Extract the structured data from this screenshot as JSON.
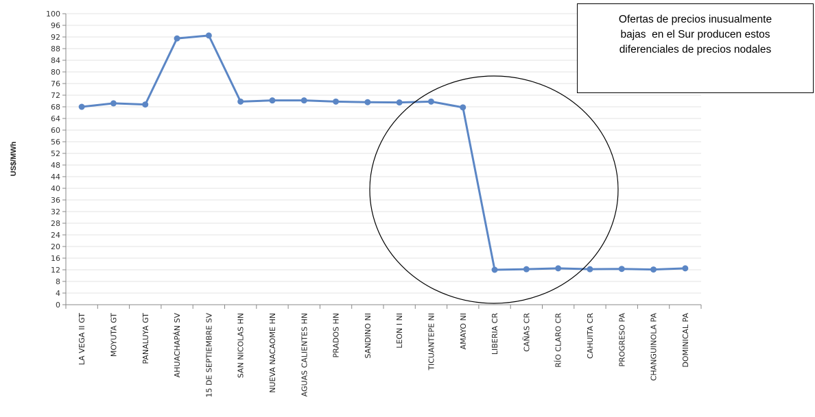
{
  "chart_data": {
    "type": "line",
    "title": "",
    "xlabel": "",
    "ylabel": "US$/MWh",
    "ylim": [
      0,
      100
    ],
    "ytick_step": 4,
    "grid": true,
    "legend": "none",
    "categories": [
      "LA VEGA II GT",
      "MOYUTA GT",
      "PANALUYA GT",
      "AHUACHAPÁN SV",
      "15 DE SEPTIEMBRE SV",
      "SAN NICOLAS HN",
      "NUEVA NACAOME HN",
      "AGUAS CALIENTES HN",
      "PRADOS HN",
      "SANDINO NI",
      "LEON I NI",
      "TICUANTEPE NI",
      "AMAYO NI",
      "LIBERIA CR",
      "CAÑAS CR",
      "RÍO CLARO CR",
      "CAHUITA CR",
      "PROGRESO PA",
      "CHANGUINOLA PA",
      "DOMINICAL PA"
    ],
    "series": [
      {
        "values": [
          68.0,
          69.2,
          68.8,
          91.5,
          92.5,
          69.8,
          70.2,
          70.2,
          69.8,
          69.6,
          69.5,
          69.8,
          67.8,
          12.0,
          12.2,
          12.5,
          12.2,
          12.3,
          12.1,
          12.5
        ],
        "color": "#5b86c5"
      }
    ],
    "annotations": [
      {
        "type": "text-box",
        "lines": [
          "Ofertas de precios inusualmente",
          "bajas  en el Sur producen estos",
          "diferenciales de precios nodales"
        ]
      },
      {
        "type": "ellipse",
        "note": "highlights drop from AMAYO NI to southern nodes"
      }
    ]
  }
}
